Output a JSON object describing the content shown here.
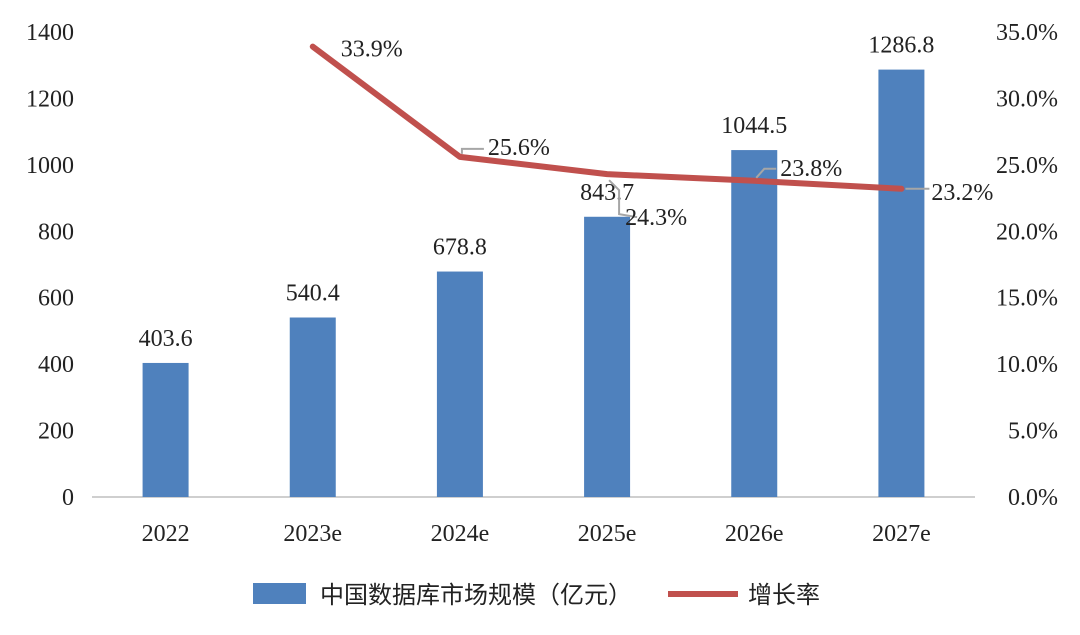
{
  "chart_data": {
    "type": "bar",
    "categories": [
      "2022",
      "2023e",
      "2024e",
      "2025e",
      "2026e",
      "2027e"
    ],
    "series": [
      {
        "name": "中国数据库市场规模（亿元）",
        "type": "bar",
        "axis": "left",
        "values": [
          403.6,
          540.4,
          678.8,
          843.7,
          1044.5,
          1286.8
        ],
        "labels": [
          "403.6",
          "540.4",
          "678.8",
          "843.7",
          "1044.5",
          "1286.8"
        ],
        "color": "#4f81bd"
      },
      {
        "name": "增长率",
        "type": "line",
        "axis": "right",
        "values": [
          null,
          33.9,
          25.6,
          24.3,
          23.8,
          23.2
        ],
        "labels": [
          "",
          "33.9%",
          "25.6%",
          "24.3%",
          "23.8%",
          "23.2%"
        ],
        "color": "#c0504d"
      }
    ],
    "y_left": {
      "ylim": [
        0,
        1400
      ],
      "ticks": [
        "0",
        "200",
        "400",
        "600",
        "800",
        "1000",
        "1200",
        "1400"
      ]
    },
    "y_right": {
      "ylim": [
        0,
        35
      ],
      "ticks": [
        "0.0%",
        "5.0%",
        "10.0%",
        "15.0%",
        "20.0%",
        "25.0%",
        "30.0%",
        "35.0%"
      ]
    },
    "grid": false,
    "legend_position": "bottom"
  }
}
